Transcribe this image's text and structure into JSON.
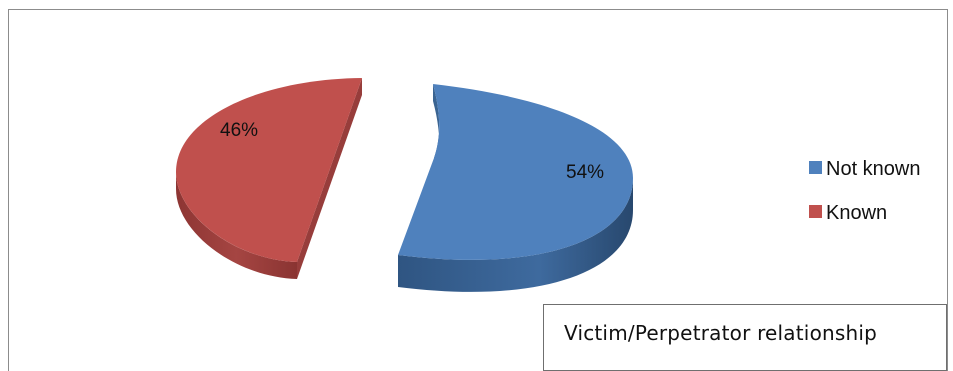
{
  "chart_data": {
    "type": "pie",
    "style": "3d-exploded",
    "categories": [
      "Not known",
      "Known"
    ],
    "values": [
      54,
      46
    ],
    "data_labels": [
      "54%",
      "46%"
    ],
    "colors": [
      "#4f81bd",
      "#c0504d"
    ],
    "side_colors": [
      "#3a6492",
      "#973d3b"
    ],
    "legend_position": "right",
    "caption": "Victim/Perpetrator relationship"
  }
}
